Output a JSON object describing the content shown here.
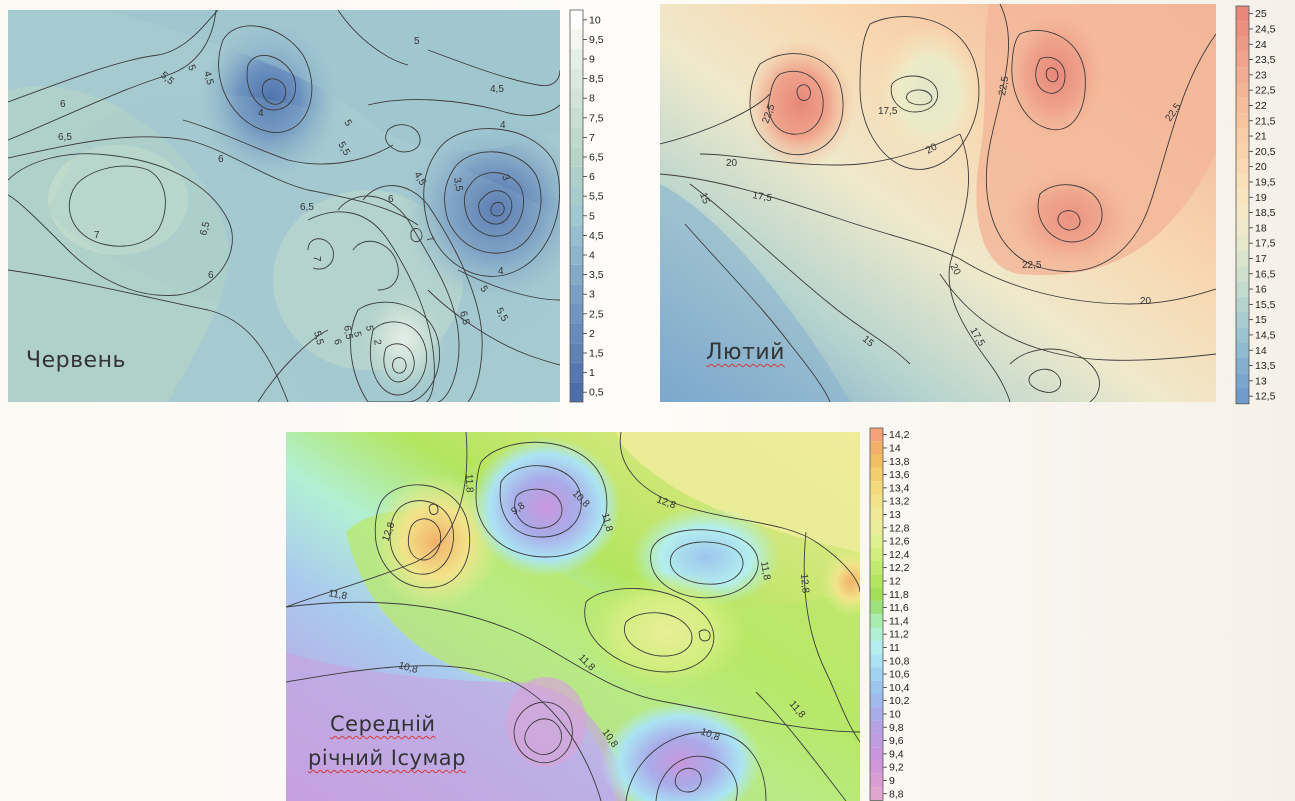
{
  "maps": [
    {
      "title": "Червень",
      "legend_ticks": [
        "10",
        "9,5",
        "9",
        "8,5",
        "8",
        "7,5",
        "7",
        "6,5",
        "6",
        "5,5",
        "5",
        "4,5",
        "4",
        "3,5",
        "3",
        "2,5",
        "2",
        "1,5",
        "1",
        "0,5"
      ],
      "legend_colors": [
        "#ffffff",
        "#f2f6ef",
        "#e6efe4",
        "#dbe9dc",
        "#d1e4d6",
        "#c8dfd0",
        "#bfdacb",
        "#b6d4c7",
        "#aed0c8",
        "#a7cccb",
        "#a1c8d0",
        "#98bfcf",
        "#8eb5cc",
        "#84aac8",
        "#7b9fc4",
        "#7195c0",
        "#688bbb",
        "#5f81b6",
        "#5677b0",
        "#4e6eab"
      ],
      "contour_labels": [
        "5,5",
        "4,5",
        "5",
        "5",
        "4,5",
        "6",
        "6,5",
        "6",
        "4",
        "5",
        "5,5",
        "4",
        "4,5",
        "3,5",
        "3",
        "6",
        "6,5",
        "6,5",
        "7",
        "7",
        "7",
        "6",
        "4",
        "5",
        "5,5",
        "6,5",
        "5,5",
        "6",
        "6,5",
        "5",
        "5",
        "2"
      ]
    },
    {
      "title": "Лютий",
      "legend_ticks": [
        "25",
        "24,5",
        "24",
        "23,5",
        "23",
        "22,5",
        "22",
        "21,5",
        "21",
        "20,5",
        "20",
        "19,5",
        "19",
        "18,5",
        "18",
        "17,5",
        "17",
        "16,5",
        "16",
        "15,5",
        "15",
        "14,5",
        "14",
        "13,5",
        "13",
        "12,5"
      ],
      "legend_colors": [
        "#e8877a",
        "#eb907f",
        "#ed9a85",
        "#efa38b",
        "#f1ab90",
        "#f3b495",
        "#f5bd9b",
        "#f6c5a0",
        "#f7cca6",
        "#f8d3ac",
        "#f9dab3",
        "#f9e0b9",
        "#f8e5c0",
        "#f5e8c6",
        "#efe9cb",
        "#e6e8cc",
        "#dbe5cd",
        "#cfe0cd",
        "#c3dbcd",
        "#b6d4ce",
        "#a9cccf",
        "#9cc3d0",
        "#90bad0",
        "#84b0cf",
        "#79a6cd",
        "#6f9ccb"
      ],
      "contour_labels": [
        "22,5",
        "17,5",
        "22,5",
        "22,5",
        "20",
        "20",
        "15",
        "17,5",
        "20",
        "22,5",
        "20",
        "15",
        "17,5"
      ]
    },
    {
      "title_line1": "Середній",
      "title_line2": "річний Iсумар",
      "legend_ticks": [
        "14,2",
        "14",
        "13,8",
        "13,6",
        "13,4",
        "13,2",
        "13",
        "12,8",
        "12,6",
        "12,4",
        "12,2",
        "12",
        "11,8",
        "11,6",
        "11,4",
        "11,2",
        "11",
        "10,8",
        "10,6",
        "10,4",
        "10,2",
        "10",
        "9,8",
        "9,6",
        "9,4",
        "9,2",
        "9",
        "8,8"
      ],
      "legend_colors": [
        "#f3a27a",
        "#f2b16a",
        "#f0c060",
        "#f2cf6b",
        "#f3da7c",
        "#f2e38a",
        "#f0ea96",
        "#eaee98",
        "#dff08f",
        "#d1ee7f",
        "#c2ea6d",
        "#b3e55f",
        "#a4df5a",
        "#9ee27c",
        "#a8ecae",
        "#b2f0d4",
        "#b4eeee",
        "#abe3f4",
        "#a1d3f1",
        "#9cc5ee",
        "#a0b8ec",
        "#a9abe8",
        "#b4a2e3",
        "#bf9be0",
        "#c996dd",
        "#d197d9",
        "#d99dd4",
        "#e0a6d0"
      ],
      "contour_labels": [
        "11,8",
        "9,8",
        "10,8",
        "12,8",
        "11,8",
        "12,8",
        "11,8",
        "12,8",
        "11,8",
        "10,8",
        "11,8",
        "11,8",
        "10,8",
        "10,8"
      ]
    }
  ]
}
